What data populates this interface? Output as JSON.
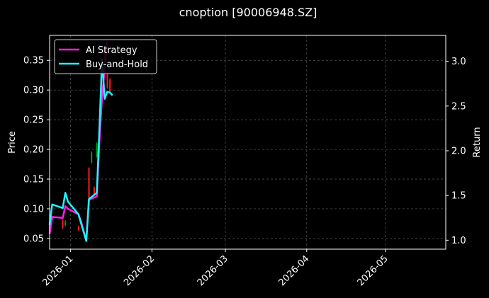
{
  "chart_data": {
    "type": "line",
    "title": "cnoption [90006948.SZ]",
    "ylabel_left": "Price",
    "ylabel_right": "Return",
    "xlabel": "",
    "grid": true,
    "legend_position": "top-left",
    "background": "#000000",
    "x_ticks": [
      "2026-01",
      "2026-02",
      "2026-03",
      "2026-04",
      "2026-05"
    ],
    "x_tick_days": [
      0,
      31,
      59,
      90,
      120
    ],
    "xlim_days": [
      -8,
      143
    ],
    "ylim_left": [
      0.032,
      0.392
    ],
    "ylim_right": [
      0.9,
      3.29
    ],
    "y_ticks_left": [
      0.05,
      0.1,
      0.15,
      0.2,
      0.25,
      0.3,
      0.35
    ],
    "y_ticks_left_labels": [
      "0.05",
      "0.10",
      "0.15",
      "0.20",
      "0.25",
      "0.30",
      "0.35"
    ],
    "y_ticks_right": [
      1.0,
      1.5,
      2.0,
      2.5,
      3.0
    ],
    "y_ticks_right_labels": [
      "1.0",
      "1.5",
      "2.0",
      "2.5",
      "3.0"
    ],
    "series": [
      {
        "name": "AI Strategy",
        "axis": "right",
        "color": "#ff1ee5",
        "x_days": [
          -8,
          -7,
          -3,
          -2,
          -1,
          3,
          4,
          5,
          6,
          7,
          10,
          11,
          12,
          13,
          14
        ],
        "values": [
          1.07,
          1.26,
          1.25,
          1.38,
          1.35,
          1.29,
          1.21,
          1.1,
          1.0,
          1.45,
          1.49,
          2.1,
          2.6,
          2.92,
          3.22
        ]
      },
      {
        "name": "Buy-and-Hold",
        "axis": "right",
        "color": "#23f2ff",
        "x_days": [
          -8,
          -7,
          -3,
          -2,
          -1,
          3,
          4,
          5,
          6,
          7,
          10,
          11,
          12,
          13,
          14,
          15,
          16
        ],
        "values": [
          1.17,
          1.4,
          1.36,
          1.53,
          1.43,
          1.29,
          1.19,
          1.09,
          0.99,
          1.46,
          1.53,
          2.25,
          3.02,
          2.58,
          2.66,
          2.65,
          2.62
        ]
      }
    ],
    "candles": [
      {
        "x_day": -8,
        "open": 0.072,
        "close": 0.061,
        "high": 0.074,
        "low": 0.059
      },
      {
        "x_day": -7,
        "open": 0.087,
        "close": 0.082,
        "high": 0.088,
        "low": 0.08
      },
      {
        "x_day": -3,
        "open": 0.08,
        "close": 0.068,
        "high": 0.082,
        "low": 0.066
      },
      {
        "x_day": -2,
        "open": 0.072,
        "close": 0.079,
        "high": 0.081,
        "low": 0.07
      },
      {
        "x_day": 3,
        "open": 0.07,
        "close": 0.064,
        "high": 0.072,
        "low": 0.062
      },
      {
        "x_day": 7,
        "open": 0.169,
        "close": 0.115,
        "high": 0.17,
        "low": 0.112
      },
      {
        "x_day": 8,
        "open": 0.178,
        "close": 0.195,
        "high": 0.197,
        "low": 0.176
      },
      {
        "x_day": 9,
        "open": 0.136,
        "close": 0.123,
        "high": 0.138,
        "low": 0.121
      },
      {
        "x_day": 10,
        "open": 0.188,
        "close": 0.21,
        "high": 0.212,
        "low": 0.186
      },
      {
        "x_day": 12,
        "open": 0.3,
        "close": 0.288,
        "high": 0.303,
        "low": 0.285
      },
      {
        "x_day": 13,
        "open": 0.366,
        "close": 0.352,
        "high": 0.372,
        "low": 0.35
      },
      {
        "x_day": 14,
        "open": 0.33,
        "close": 0.304,
        "high": 0.332,
        "low": 0.302
      },
      {
        "x_day": 15,
        "open": 0.318,
        "close": 0.297,
        "high": 0.32,
        "low": 0.295
      }
    ],
    "candle_colors": {
      "up": "#00a000",
      "down": "#ff1a1a"
    }
  }
}
